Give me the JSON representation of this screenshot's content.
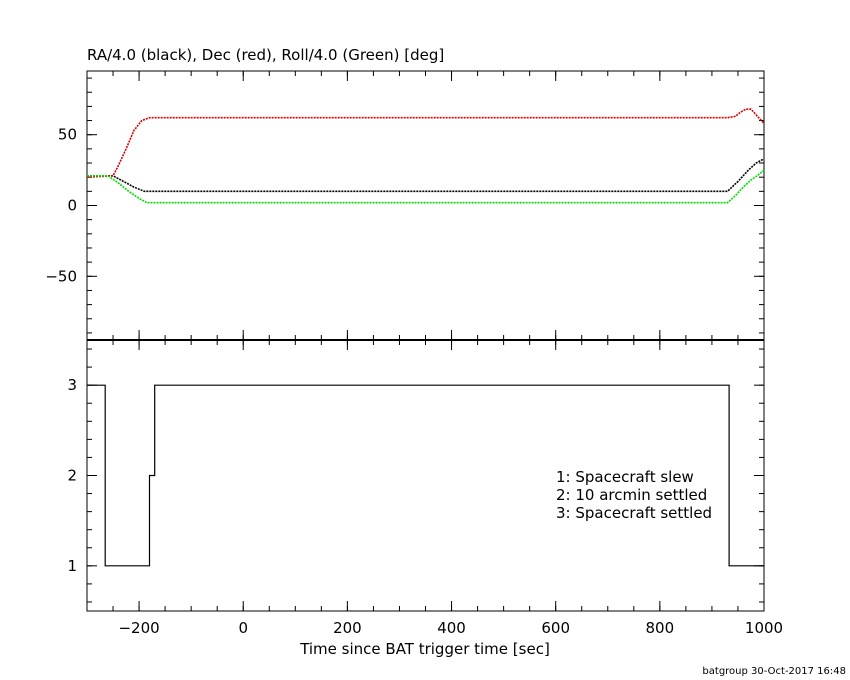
{
  "chart_data": [
    {
      "type": "line",
      "title": "RA/4.0 (black), Dec (red), Roll/4.0 (Green) [deg]",
      "xlim": [
        -300,
        1000
      ],
      "ylim": [
        -95,
        95
      ],
      "yticks": [
        {
          "value": -50,
          "label": "−50"
        },
        {
          "value": 0,
          "label": "0"
        },
        {
          "value": 50,
          "label": "50"
        }
      ],
      "series": [
        {
          "color": "#000000",
          "points": [
            [
              -300,
              21
            ],
            [
              -250,
              21
            ],
            [
              -230,
              17
            ],
            [
              -210,
              13
            ],
            [
              -190,
              10
            ],
            [
              -180,
              10
            ],
            [
              930,
              10
            ],
            [
              950,
              17
            ],
            [
              970,
              25
            ],
            [
              985,
              30
            ],
            [
              1000,
              33
            ]
          ]
        },
        {
          "color": "#dd0000",
          "points": [
            [
              -300,
              20
            ],
            [
              -250,
              21
            ],
            [
              -240,
              28
            ],
            [
              -225,
              40
            ],
            [
              -210,
              53
            ],
            [
              -195,
              60
            ],
            [
              -180,
              62
            ],
            [
              930,
              62
            ],
            [
              945,
              63
            ],
            [
              955,
              66
            ],
            [
              965,
              68
            ],
            [
              975,
              68
            ],
            [
              985,
              64
            ],
            [
              995,
              60
            ],
            [
              1000,
              58
            ]
          ]
        },
        {
          "color": "#00dd00",
          "points": [
            [
              -300,
              21
            ],
            [
              -260,
              21
            ],
            [
              -240,
              16
            ],
            [
              -220,
              10
            ],
            [
              -200,
              5
            ],
            [
              -185,
              2
            ],
            [
              930,
              2
            ],
            [
              945,
              7
            ],
            [
              960,
              13
            ],
            [
              975,
              18
            ],
            [
              990,
              22
            ],
            [
              1000,
              25
            ]
          ]
        }
      ]
    },
    {
      "type": "line",
      "xlabel": "Time since BAT trigger time [sec]",
      "xlim": [
        -300,
        1000
      ],
      "ylim": [
        0.5,
        3.5
      ],
      "xticks": [
        {
          "value": -200,
          "label": "−200"
        },
        {
          "value": 0,
          "label": "0"
        },
        {
          "value": 200,
          "label": "200"
        },
        {
          "value": 400,
          "label": "400"
        },
        {
          "value": 600,
          "label": "600"
        },
        {
          "value": 800,
          "label": "800"
        },
        {
          "value": 1000,
          "label": "1000"
        }
      ],
      "yticks": [
        {
          "value": 1,
          "label": "1"
        },
        {
          "value": 2,
          "label": "2"
        },
        {
          "value": 3,
          "label": "3"
        }
      ],
      "series": [
        {
          "color": "#000000",
          "step": true,
          "points": [
            [
              -300,
              3
            ],
            [
              -265,
              3
            ],
            [
              -265,
              1
            ],
            [
              -180,
              1
            ],
            [
              -180,
              2
            ],
            [
              -170,
              2
            ],
            [
              -170,
              3
            ],
            [
              933,
              3
            ],
            [
              933,
              1
            ],
            [
              1000,
              1
            ]
          ]
        }
      ],
      "annotations": [
        "1: Spacecraft slew",
        "2: 10 arcmin settled",
        "3: Spacecraft settled"
      ]
    }
  ],
  "footer": "batgroup 30-Oct-2017 16:48"
}
